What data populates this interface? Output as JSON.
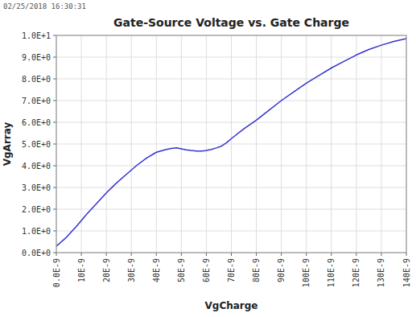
{
  "chart_data": {
    "type": "line",
    "title": "Gate-Source Voltage vs. Gate Charge",
    "x_label": "VgCharge",
    "y_label": "VgArray",
    "annotations": [
      "02/25/2018 16:30:31"
    ],
    "color": "#3333cc",
    "grid": true,
    "xlim": [
      0,
      1.4e-07
    ],
    "ylim": [
      0,
      10
    ],
    "xticks": [
      {
        "value": 0,
        "label": "0.0E-9"
      },
      {
        "value": 1e-08,
        "label": "10E-9"
      },
      {
        "value": 2e-08,
        "label": "20E-9"
      },
      {
        "value": 3e-08,
        "label": "30E-9"
      },
      {
        "value": 4e-08,
        "label": "40E-9"
      },
      {
        "value": 5e-08,
        "label": "50E-9"
      },
      {
        "value": 6e-08,
        "label": "60E-9"
      },
      {
        "value": 7e-08,
        "label": "70E-9"
      },
      {
        "value": 8e-08,
        "label": "80E-9"
      },
      {
        "value": 9e-08,
        "label": "90E-9"
      },
      {
        "value": 1e-07,
        "label": "100E-9"
      },
      {
        "value": 1.1e-07,
        "label": "110E-9"
      },
      {
        "value": 1.2e-07,
        "label": "120E-9"
      },
      {
        "value": 1.3e-07,
        "label": "130E-9"
      },
      {
        "value": 1.4e-07,
        "label": "140E-9"
      }
    ],
    "yticks": [
      {
        "value": 0,
        "label": "0.0E+0"
      },
      {
        "value": 1,
        "label": "1.0E+0"
      },
      {
        "value": 2,
        "label": "2.0E+0"
      },
      {
        "value": 3,
        "label": "3.0E+0"
      },
      {
        "value": 4,
        "label": "4.0E+0"
      },
      {
        "value": 5,
        "label": "5.0E+0"
      },
      {
        "value": 6,
        "label": "6.0E+0"
      },
      {
        "value": 7,
        "label": "7.0E+0"
      },
      {
        "value": 8,
        "label": "8.0E+0"
      },
      {
        "value": 9,
        "label": "9.0E+0"
      },
      {
        "value": 10,
        "label": "1.0E+1"
      }
    ],
    "x": [
      0,
      4e-09,
      8e-09,
      1.2e-08,
      1.6e-08,
      2e-08,
      2.4e-08,
      2.8e-08,
      3.2e-08,
      3.6e-08,
      4e-08,
      4.4e-08,
      4.6e-08,
      4.8e-08,
      5e-08,
      5.2e-08,
      5.4e-08,
      5.6e-08,
      5.8e-08,
      6e-08,
      6.2e-08,
      6.4e-08,
      6.6e-08,
      6.8e-08,
      7e-08,
      7.5e-08,
      8e-08,
      8.5e-08,
      9e-08,
      9.5e-08,
      1e-07,
      1.05e-07,
      1.1e-07,
      1.15e-07,
      1.2e-07,
      1.25e-07,
      1.3e-07,
      1.35e-07,
      1.4e-07
    ],
    "values": [
      0.3,
      0.7,
      1.2,
      1.75,
      2.25,
      2.75,
      3.2,
      3.6,
      4.0,
      4.35,
      4.62,
      4.75,
      4.8,
      4.82,
      4.78,
      4.73,
      4.7,
      4.68,
      4.68,
      4.7,
      4.75,
      4.82,
      4.9,
      5.05,
      5.25,
      5.7,
      6.1,
      6.55,
      7.0,
      7.4,
      7.8,
      8.15,
      8.5,
      8.8,
      9.1,
      9.35,
      9.55,
      9.72,
      9.85
    ]
  }
}
